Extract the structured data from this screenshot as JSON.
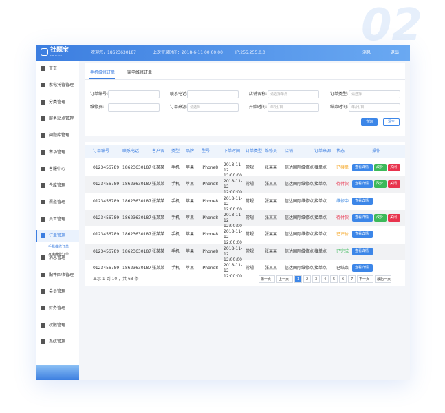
{
  "logo": {
    "name": "社题宝",
    "subtitle": "SHE TI BAO"
  },
  "watermark": "02",
  "header": {
    "welcome": "欢迎您，18623630187",
    "last_login": "上次登录时间：2018-6-11 00:00:00",
    "ip": "IP:255.255.0.0",
    "messages": "消息",
    "logout": "退出"
  },
  "sidebar": {
    "items": [
      "首页",
      "家电托管管理",
      "分类管理",
      "服务站点管理",
      "问题库管理",
      "市场管理",
      "客服中心",
      "仓库管理",
      "渠道管理",
      "员工管理",
      "订单管理",
      "消息管理",
      "配件回收管理",
      "会员管理",
      "财务管理",
      "权限管理",
      "系统管理"
    ],
    "active": "订单管理",
    "submenu": [
      "手机维修订单",
      "家电维修订单"
    ]
  },
  "tabs": [
    "手机维修订单",
    "家电维修订单"
  ],
  "filters": [
    {
      "label": "订单编号:",
      "placeholder": ""
    },
    {
      "label": "联系电话:",
      "placeholder": ""
    },
    {
      "label": "店铺名称:",
      "placeholder": "请选择单点"
    },
    {
      "label": "订单类型:",
      "placeholder": "请选择"
    },
    {
      "label": "维修员:",
      "placeholder": ""
    },
    {
      "label": "订单来源:",
      "placeholder": "请选择"
    },
    {
      "label": "开始时间:",
      "placeholder": "年/月/日"
    },
    {
      "label": "结束时间:",
      "placeholder": "年/月/日"
    }
  ],
  "buttons": {
    "search": "查询",
    "clear": "清空"
  },
  "table": {
    "columns": [
      "订单编号",
      "联系电话",
      "客户名",
      "类型",
      "品牌",
      "型号",
      "下单时间",
      "订单类型",
      "维修员",
      "店铺",
      "订单来源",
      "状态",
      "操作"
    ],
    "rows": [
      {
        "cells": [
          "0123456789",
          "18623630187",
          "张某某",
          "手机",
          "苹果",
          "iPhone8",
          "2018-11-12 12:00:00",
          "常规",
          "张某某",
          "信达国际维修点",
          "接单点",
          "已接单"
        ],
        "status_color": "#f5a623",
        "actions": [
          "查看详情",
          "改价",
          "关闭"
        ]
      },
      {
        "cells": [
          "0123456789",
          "18623630187",
          "张某某",
          "手机",
          "苹果",
          "iPhone8",
          "2018-11-12 12:00:00",
          "常规",
          "张某某",
          "信达国际维修点",
          "接单点",
          "待付款"
        ],
        "status_color": "#e8344e",
        "actions": [
          "查看详情",
          "改价",
          "关闭"
        ]
      },
      {
        "cells": [
          "0123456789",
          "18623630187",
          "张某某",
          "手机",
          "苹果",
          "iPhone8",
          "2018-11-12 12:00:00",
          "常规",
          "张某某",
          "信达国际维修点",
          "接单点",
          "维修中"
        ],
        "status_color": "#3a86e0",
        "actions": [
          "查看详情"
        ]
      },
      {
        "cells": [
          "0123456789",
          "18623630187",
          "张某某",
          "手机",
          "苹果",
          "iPhone8",
          "2018-11-12 12:00:00",
          "常规",
          "张某某",
          "信达国际维修点",
          "接单点",
          "待付款"
        ],
        "status_color": "#e8344e",
        "actions": [
          "查看详情",
          "改价",
          "关闭"
        ]
      },
      {
        "cells": [
          "0123456789",
          "18623630187",
          "张某某",
          "手机",
          "苹果",
          "iPhone8",
          "2018-11-12 12:00:00",
          "常规",
          "张某某",
          "信达国际维修点",
          "接单点",
          "已评价"
        ],
        "status_color": "#f5a623",
        "actions": [
          "查看详情"
        ]
      },
      {
        "cells": [
          "0123456789",
          "18623630187",
          "张某某",
          "手机",
          "苹果",
          "iPhone8",
          "2018-11-12 12:00:00",
          "常规",
          "张某某",
          "信达国际维修点",
          "接单点",
          "已完成"
        ],
        "status_color": "#3cb95a",
        "actions": [
          "查看详情"
        ]
      },
      {
        "cells": [
          "0123456789",
          "18623630187",
          "张某某",
          "手机",
          "苹果",
          "iPhone8",
          "2018-11-12 12:00:00",
          "常规",
          "张某某",
          "信达国际维修点",
          "接单点",
          "已结束"
        ],
        "status_color": "#333333",
        "actions": [
          "查看详情"
        ]
      }
    ]
  },
  "footer": {
    "summary": "显示 1 到 10 ，共 68 条",
    "pagination": [
      "第一页",
      "上一页",
      "1",
      "2",
      "3",
      "4",
      "5",
      "6",
      "7",
      "下一页",
      "最后一页"
    ],
    "current": "1"
  }
}
